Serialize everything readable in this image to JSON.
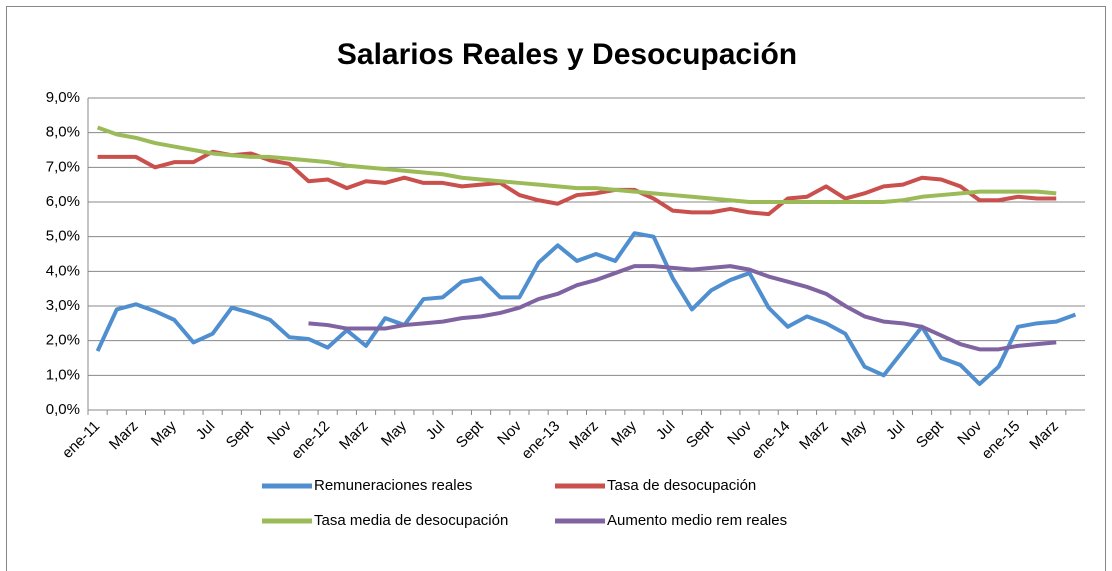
{
  "chart_data": {
    "type": "line",
    "title": "Salarios Reales y Desocupación",
    "categories": [
      "ene-11",
      null,
      "Marz",
      null,
      "May",
      null,
      "Jul",
      null,
      "Sept",
      null,
      "Nov",
      null,
      "ene-12",
      null,
      "Marz",
      null,
      "May",
      null,
      "Jul",
      null,
      "Sept",
      null,
      "Nov",
      null,
      "ene-13",
      null,
      "Marz",
      null,
      "May",
      null,
      "Jul",
      null,
      "Sept",
      null,
      "Nov",
      null,
      "ene-14",
      null,
      "Marz",
      null,
      "May",
      null,
      "Jul",
      null,
      "Sept",
      null,
      "Nov",
      null,
      "ene-15",
      null,
      "Marz",
      null
    ],
    "series": [
      {
        "name": "Remuneraciones reales",
        "color": "#4f8fd0",
        "values": [
          1.7,
          2.9,
          3.05,
          2.85,
          2.6,
          1.95,
          2.2,
          2.95,
          2.8,
          2.6,
          2.1,
          2.05,
          1.8,
          2.3,
          1.85,
          2.65,
          2.45,
          3.2,
          3.25,
          3.7,
          3.8,
          3.25,
          3.25,
          4.25,
          4.75,
          4.3,
          4.5,
          4.3,
          5.1,
          5.0,
          3.8,
          2.9,
          3.45,
          3.75,
          3.95,
          2.95,
          2.4,
          2.7,
          2.5,
          2.2,
          1.25,
          1.0,
          1.7,
          2.4,
          1.5,
          1.3,
          0.75,
          1.25,
          2.4,
          2.5,
          2.55,
          2.75
        ]
      },
      {
        "name": "Tasa de desocupación",
        "color": "#c9504d",
        "values": [
          7.3,
          7.3,
          7.3,
          7.0,
          7.15,
          7.15,
          7.45,
          7.35,
          7.4,
          7.2,
          7.1,
          6.6,
          6.65,
          6.4,
          6.6,
          6.55,
          6.7,
          6.55,
          6.55,
          6.45,
          6.5,
          6.55,
          6.2,
          6.05,
          5.95,
          6.2,
          6.25,
          6.35,
          6.35,
          6.1,
          5.75,
          5.7,
          5.7,
          5.8,
          5.7,
          5.65,
          6.1,
          6.15,
          6.45,
          6.1,
          6.25,
          6.45,
          6.5,
          6.7,
          6.65,
          6.45,
          6.05,
          6.05,
          6.15,
          6.1,
          6.1,
          null
        ]
      },
      {
        "name": "Tasa media de desocupación",
        "color": "#9bbb59",
        "values": [
          8.15,
          7.95,
          7.85,
          7.7,
          7.6,
          7.5,
          7.4,
          7.35,
          7.3,
          7.3,
          7.25,
          7.2,
          7.15,
          7.05,
          7.0,
          6.95,
          6.9,
          6.85,
          6.8,
          6.7,
          6.65,
          6.6,
          6.55,
          6.5,
          6.45,
          6.4,
          6.4,
          6.35,
          6.3,
          6.25,
          6.2,
          6.15,
          6.1,
          6.05,
          6.0,
          6.0,
          6.0,
          6.0,
          6.0,
          6.0,
          6.0,
          6.0,
          6.05,
          6.15,
          6.2,
          6.25,
          6.3,
          6.3,
          6.3,
          6.3,
          6.25,
          null
        ]
      },
      {
        "name": "Aumento medio rem reales",
        "color": "#8064a2",
        "values": [
          null,
          null,
          null,
          null,
          null,
          null,
          null,
          null,
          null,
          null,
          null,
          2.5,
          2.45,
          2.35,
          2.35,
          2.35,
          2.45,
          2.5,
          2.55,
          2.65,
          2.7,
          2.8,
          2.95,
          3.2,
          3.35,
          3.6,
          3.75,
          3.95,
          4.15,
          4.15,
          4.1,
          4.05,
          4.1,
          4.15,
          4.05,
          3.85,
          3.7,
          3.55,
          3.35,
          3.0,
          2.7,
          2.55,
          2.5,
          2.4,
          2.15,
          1.9,
          1.75,
          1.75,
          1.85,
          1.9,
          1.95,
          null
        ]
      }
    ],
    "ylim": [
      0,
      9
    ],
    "yticks": [
      {
        "value": 0,
        "label": "0,0%"
      },
      {
        "value": 1,
        "label": "1,0%"
      },
      {
        "value": 2,
        "label": "2,0%"
      },
      {
        "value": 3,
        "label": "3,0%"
      },
      {
        "value": 4,
        "label": "4,0%"
      },
      {
        "value": 5,
        "label": "5,0%"
      },
      {
        "value": 6,
        "label": "6,0%"
      },
      {
        "value": 7,
        "label": "7,0%"
      },
      {
        "value": 8,
        "label": "8,0%"
      },
      {
        "value": 9,
        "label": "9,0%"
      }
    ],
    "grid": true,
    "legend": "bottom"
  }
}
